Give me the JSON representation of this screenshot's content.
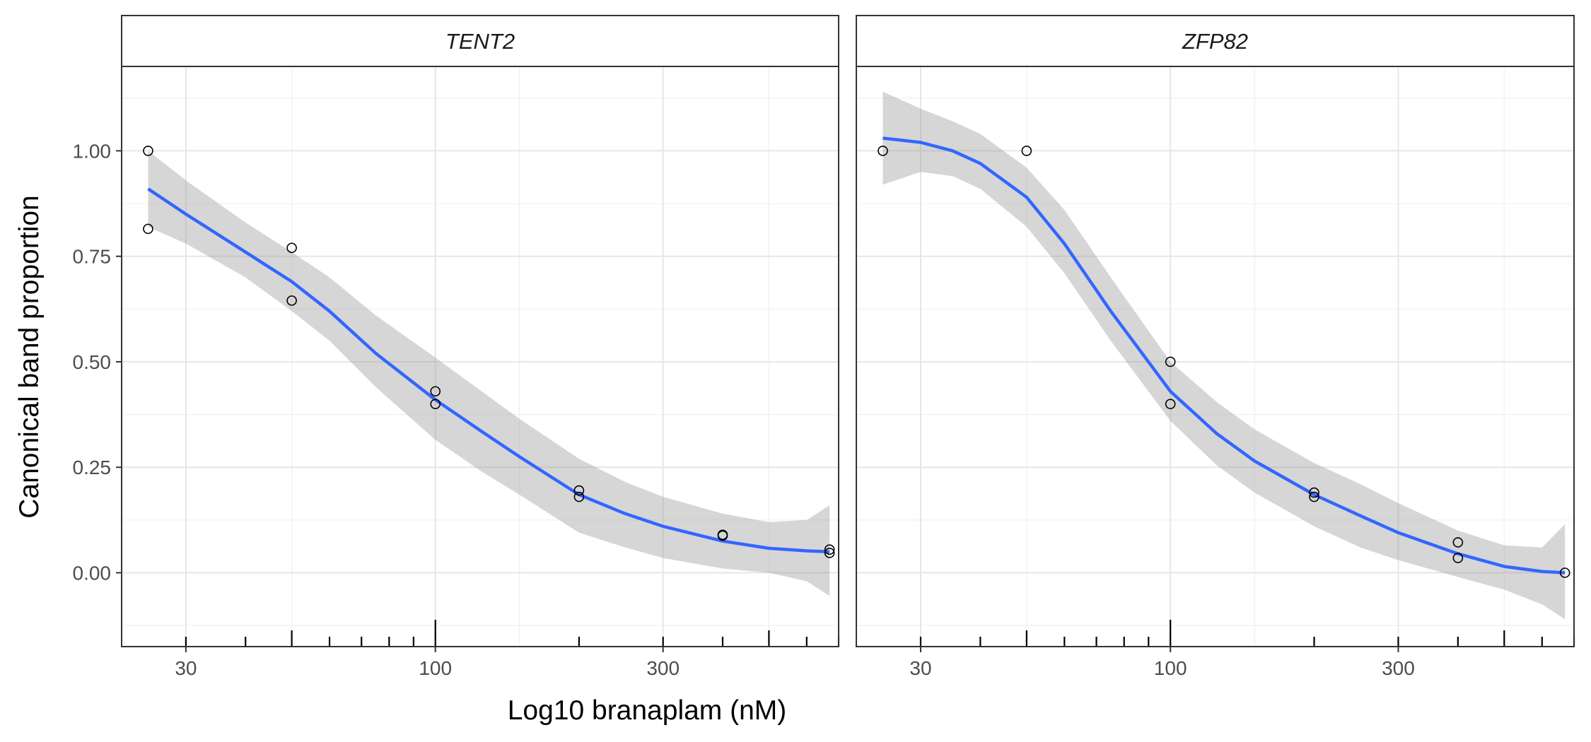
{
  "figure": {
    "xlabel": "Log10 branaplam (nM)",
    "ylabel": "Canonical band proportion"
  },
  "chart_data": [
    {
      "type": "scatter",
      "panel": "TENT2",
      "x_scale": "log10",
      "xlim": [
        22,
        700
      ],
      "ylim": [
        -0.175,
        1.2
      ],
      "x_ticks": [
        30,
        100,
        300
      ],
      "x_tick_labels": [
        "30",
        "100",
        "300"
      ],
      "y_ticks": [
        0.0,
        0.25,
        0.5,
        0.75,
        1.0
      ],
      "y_tick_labels": [
        "0.00",
        "0.25",
        "0.50",
        "0.75",
        "1.00"
      ],
      "grid": true,
      "points": [
        {
          "x": 25,
          "y": 1.0
        },
        {
          "x": 25,
          "y": 0.815
        },
        {
          "x": 50,
          "y": 0.77
        },
        {
          "x": 50,
          "y": 0.645
        },
        {
          "x": 100,
          "y": 0.43
        },
        {
          "x": 100,
          "y": 0.4
        },
        {
          "x": 200,
          "y": 0.195
        },
        {
          "x": 200,
          "y": 0.18
        },
        {
          "x": 400,
          "y": 0.09
        },
        {
          "x": 400,
          "y": 0.088
        },
        {
          "x": 670,
          "y": 0.055
        },
        {
          "x": 670,
          "y": 0.047
        }
      ],
      "smooth_line": {
        "color": "#3366ff",
        "x": [
          25,
          30,
          40,
          50,
          60,
          75,
          100,
          125,
          150,
          200,
          250,
          300,
          400,
          500,
          600,
          670
        ],
        "y": [
          0.91,
          0.85,
          0.76,
          0.69,
          0.62,
          0.52,
          0.41,
          0.335,
          0.275,
          0.185,
          0.14,
          0.11,
          0.075,
          0.058,
          0.052,
          0.05
        ],
        "lower": [
          0.82,
          0.78,
          0.7,
          0.62,
          0.55,
          0.44,
          0.315,
          0.24,
          0.185,
          0.095,
          0.06,
          0.035,
          0.01,
          0.0,
          -0.02,
          -0.055
        ],
        "upper": [
          1.0,
          0.93,
          0.83,
          0.76,
          0.7,
          0.61,
          0.51,
          0.43,
          0.365,
          0.27,
          0.215,
          0.18,
          0.14,
          0.12,
          0.125,
          0.16
        ]
      }
    },
    {
      "type": "scatter",
      "panel": "ZFP82",
      "x_scale": "log10",
      "xlim": [
        22,
        700
      ],
      "ylim": [
        -0.175,
        1.2
      ],
      "x_ticks": [
        30,
        100,
        300
      ],
      "x_tick_labels": [
        "30",
        "100",
        "300"
      ],
      "y_ticks": [
        0.0,
        0.25,
        0.5,
        0.75,
        1.0
      ],
      "y_tick_labels": [
        "0.00",
        "0.25",
        "0.50",
        "0.75",
        "1.00"
      ],
      "grid": true,
      "points": [
        {
          "x": 25,
          "y": 1.0
        },
        {
          "x": 50,
          "y": 1.0
        },
        {
          "x": 100,
          "y": 0.5
        },
        {
          "x": 100,
          "y": 0.4
        },
        {
          "x": 200,
          "y": 0.19
        },
        {
          "x": 200,
          "y": 0.18
        },
        {
          "x": 400,
          "y": 0.072
        },
        {
          "x": 400,
          "y": 0.035
        },
        {
          "x": 670,
          "y": 0.0
        }
      ],
      "smooth_line": {
        "color": "#3366ff",
        "x": [
          25,
          30,
          35,
          40,
          50,
          60,
          75,
          100,
          125,
          150,
          200,
          250,
          300,
          400,
          500,
          600,
          670
        ],
        "y": [
          1.03,
          1.02,
          1.0,
          0.97,
          0.89,
          0.78,
          0.62,
          0.43,
          0.33,
          0.265,
          0.185,
          0.135,
          0.095,
          0.045,
          0.015,
          0.003,
          0.0
        ],
        "lower": [
          0.92,
          0.95,
          0.94,
          0.91,
          0.82,
          0.71,
          0.55,
          0.36,
          0.255,
          0.19,
          0.11,
          0.06,
          0.03,
          -0.01,
          -0.04,
          -0.075,
          -0.11
        ],
        "upper": [
          1.14,
          1.1,
          1.07,
          1.04,
          0.96,
          0.86,
          0.7,
          0.5,
          0.405,
          0.34,
          0.26,
          0.21,
          0.165,
          0.1,
          0.065,
          0.06,
          0.115
        ]
      }
    }
  ]
}
